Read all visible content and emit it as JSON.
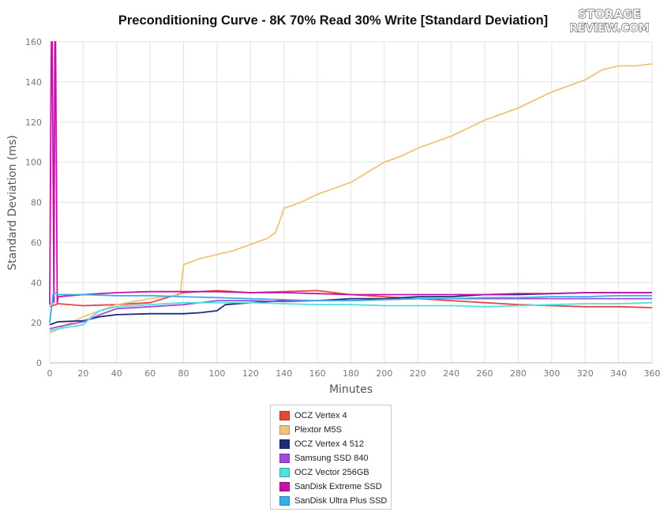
{
  "chart_data": {
    "type": "line",
    "title": "Preconditioning Curve - 8K 70% Read 30% Write [Standard Deviation]",
    "xlabel": "Minutes",
    "ylabel": "Standard Deviation (ms)",
    "xlim": [
      0,
      360
    ],
    "ylim": [
      0,
      160
    ],
    "x_ticks": [
      0,
      20,
      40,
      60,
      80,
      100,
      120,
      140,
      160,
      180,
      200,
      220,
      240,
      260,
      280,
      300,
      320,
      340,
      360
    ],
    "y_ticks": [
      0,
      20,
      40,
      60,
      80,
      100,
      120,
      140,
      160
    ],
    "grid": true,
    "legend_position": "bottom-center",
    "series": [
      {
        "name": "OCZ Vertex 4",
        "color": "#e8453c",
        "x": [
          0,
          5,
          20,
          40,
          60,
          80,
          100,
          120,
          140,
          160,
          180,
          200,
          220,
          240,
          260,
          280,
          300,
          320,
          340,
          360
        ],
        "y": [
          28,
          29.5,
          28.5,
          29,
          30,
          35,
          36,
          35,
          35.5,
          36,
          34,
          33,
          32,
          31,
          30,
          29,
          28.5,
          28,
          28,
          27.5
        ]
      },
      {
        "name": "Plextor M5S",
        "color": "#f0c27b",
        "x": [
          0,
          2,
          10,
          20,
          40,
          60,
          78,
          80,
          90,
          100,
          110,
          120,
          130,
          135,
          138,
          140,
          150,
          160,
          170,
          180,
          190,
          200,
          210,
          220,
          230,
          240,
          250,
          260,
          270,
          280,
          290,
          300,
          310,
          320,
          330,
          340,
          350,
          360
        ],
        "y": [
          15,
          15.5,
          19,
          23,
          29,
          32,
          34,
          49,
          52,
          54,
          56,
          59,
          62,
          65,
          72,
          77,
          80,
          84,
          87,
          90,
          95,
          100,
          103,
          107,
          110,
          113,
          117,
          121,
          124,
          127,
          131,
          135,
          138,
          141,
          146,
          148,
          148,
          149
        ]
      },
      {
        "name": "OCZ Vertex 4 512",
        "color": "#1c2d7a",
        "x": [
          0,
          5,
          20,
          30,
          40,
          60,
          80,
          90,
          100,
          105,
          120,
          140,
          160,
          180,
          200,
          220,
          240,
          260,
          280,
          300,
          320,
          340,
          360
        ],
        "y": [
          19,
          20.5,
          21,
          23,
          24,
          24.5,
          24.5,
          25,
          26,
          29,
          30,
          31,
          31,
          32,
          32,
          33,
          33,
          34,
          34,
          34.5,
          35,
          35,
          35
        ]
      },
      {
        "name": "Samsung SSD 840",
        "color": "#a24bdb",
        "x": [
          0,
          5,
          20,
          30,
          40,
          60,
          80,
          100,
          120,
          140,
          160,
          180,
          200,
          220,
          240,
          260,
          280,
          300,
          320,
          340,
          360
        ],
        "y": [
          17,
          18,
          20.5,
          24,
          27,
          28,
          29,
          31,
          31,
          30.5,
          31,
          31,
          31.5,
          32,
          32,
          32,
          32,
          32,
          32,
          32,
          32
        ]
      },
      {
        "name": "OCZ Vector 256GB",
        "color": "#52e0de",
        "x": [
          0,
          5,
          20,
          25,
          30,
          40,
          60,
          80,
          100,
          120,
          140,
          160,
          180,
          200,
          220,
          240,
          260,
          280,
          300,
          320,
          340,
          360
        ],
        "y": [
          16,
          17,
          19,
          23,
          26,
          28,
          29,
          30,
          30,
          30,
          29.5,
          29,
          29,
          28.5,
          28.5,
          28.5,
          28,
          28.5,
          29,
          29.5,
          29.5,
          30
        ]
      },
      {
        "name": "SanDisk Extreme SSD",
        "color": "#c412a9",
        "x": [
          0,
          1,
          1.5,
          2.5,
          3,
          3.5,
          4.5,
          5,
          20,
          40,
          60,
          80,
          100,
          120,
          140,
          160,
          180,
          200,
          220,
          240,
          260,
          280,
          300,
          320,
          340,
          360
        ],
        "y": [
          29,
          160,
          160,
          30,
          160,
          160,
          30,
          33,
          34,
          35,
          35.5,
          35.5,
          35.5,
          35,
          35,
          34.5,
          34,
          34,
          34,
          34,
          34,
          34.5,
          34.5,
          35,
          35,
          35
        ]
      },
      {
        "name": "SanDisk Ultra Plus SSD",
        "color": "#3aaee8",
        "x": [
          0,
          2,
          3,
          5,
          20,
          40,
          60,
          80,
          100,
          120,
          140,
          160,
          180,
          200,
          220,
          240,
          260,
          280,
          300,
          320,
          340,
          360
        ],
        "y": [
          20,
          34,
          35,
          34,
          34,
          33.5,
          33.5,
          33,
          32.5,
          32,
          31.5,
          31,
          31,
          31.5,
          32,
          32,
          32.5,
          32.5,
          33,
          33,
          33.5,
          33.5
        ]
      }
    ]
  },
  "logo": {
    "line1": "STORAGE",
    "line2": "REVIEW.COM"
  }
}
